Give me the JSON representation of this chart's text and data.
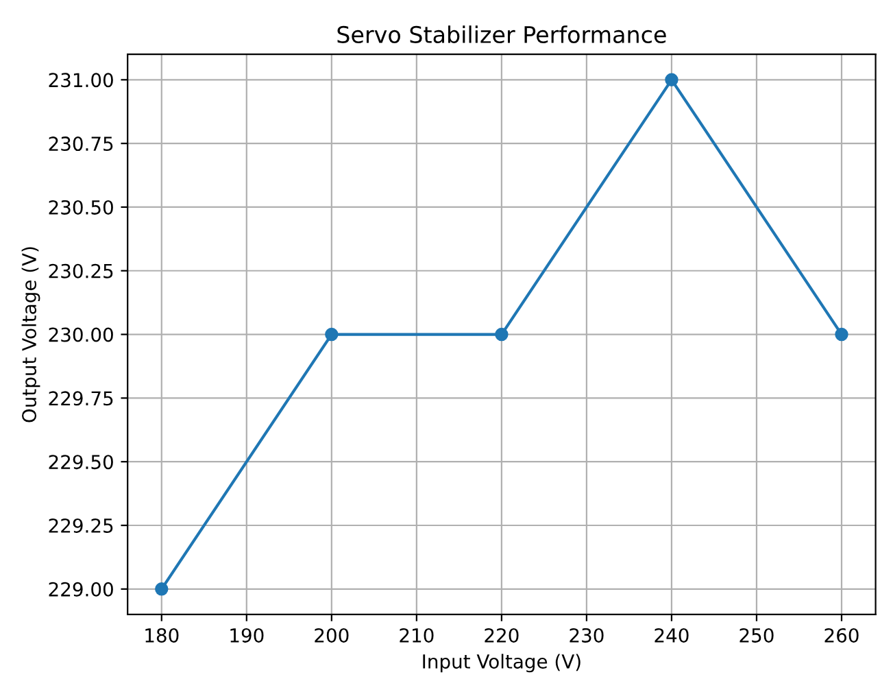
{
  "chart_data": {
    "type": "line",
    "title": "Servo Stabilizer Performance",
    "xlabel": "Input Voltage (V)",
    "ylabel": "Output Voltage (V)",
    "x": [
      180,
      200,
      220,
      240,
      260
    ],
    "series": [
      {
        "color": "#1f77b4",
        "values": [
          229.0,
          230.0,
          230.0,
          231.0,
          230.0
        ]
      }
    ],
    "xlim": [
      176,
      264
    ],
    "xticks": [
      180,
      190,
      200,
      210,
      220,
      230,
      240,
      250,
      260
    ],
    "ylim": [
      228.9,
      231.1
    ],
    "yticks": [
      {
        "value": 229.0,
        "label": "229.00"
      },
      {
        "value": 229.25,
        "label": "229.25"
      },
      {
        "value": 229.5,
        "label": "229.50"
      },
      {
        "value": 229.75,
        "label": "229.75"
      },
      {
        "value": 230.0,
        "label": "230.00"
      },
      {
        "value": 230.25,
        "label": "230.25"
      },
      {
        "value": 230.5,
        "label": "230.50"
      },
      {
        "value": 230.75,
        "label": "230.75"
      },
      {
        "value": 231.0,
        "label": "231.00"
      }
    ],
    "grid": true,
    "marker": "circle",
    "line_style": "solid"
  }
}
